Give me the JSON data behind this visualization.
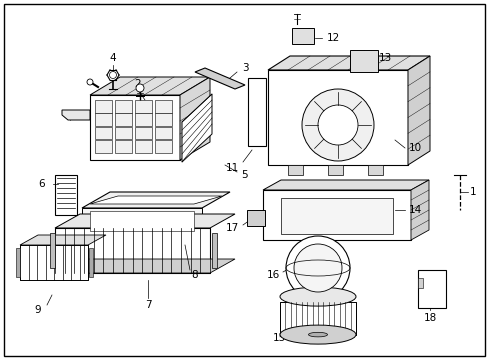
{
  "background_color": "#ffffff",
  "border_color": "#000000",
  "line_color": "#000000",
  "text_color": "#000000",
  "fig_width": 4.89,
  "fig_height": 3.6,
  "dpi": 100
}
